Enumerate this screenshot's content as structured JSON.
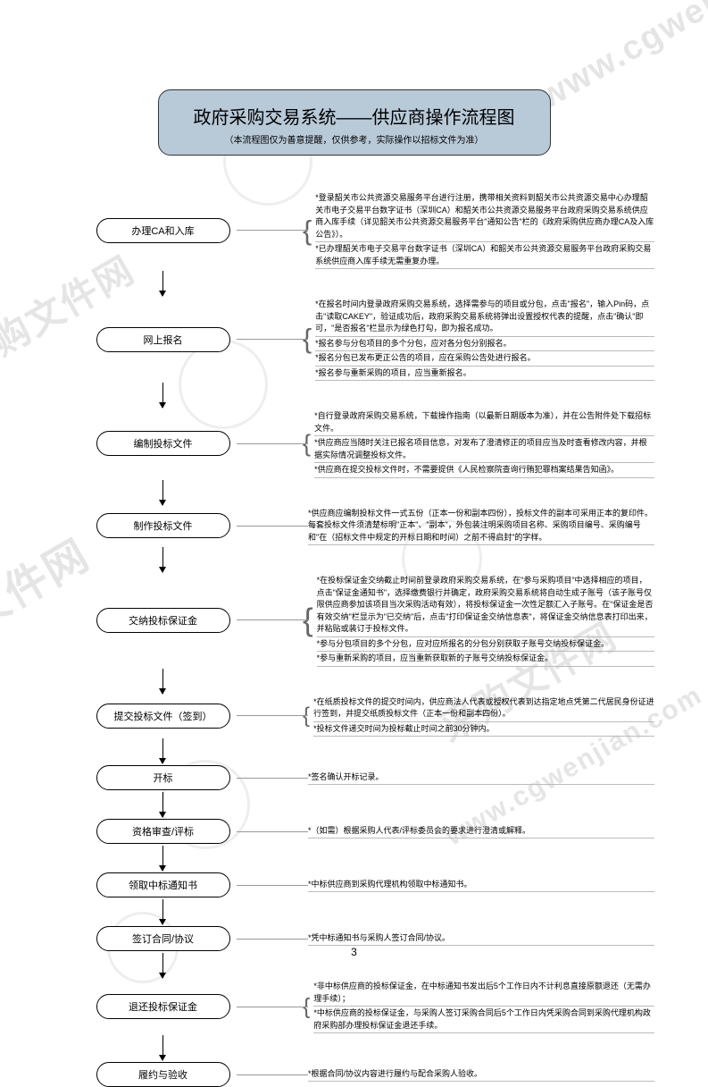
{
  "title": {
    "main": "政府采购交易系统——供应商操作流程图",
    "sub": "（本流程图仅为善意提醒，仅供参考，实际操作以招标文件为准）"
  },
  "watermark_text": "采购文件网",
  "watermark_url": "www.cgwenjian.com",
  "page_number": "3",
  "colors": {
    "title_bg": "#b8c9d8",
    "border": "#000000",
    "watermark": "#e5e5e5",
    "line": "#bbbbbb"
  },
  "steps": [
    {
      "label": "办理CA和入库",
      "desc": [
        "*登录韶关市公共资源交易服务平台进行注册，携带相关资料到韶关市公共资源交易中心办理韶关市电子交易平台数字证书（深圳CA）和韶关市公共资源交易服务平台政府采购交易系统供应商入库手续（详见韶关市公共资源交易服务平台\"通知公告\"栏的《政府采购供应商办理CA及入库公告》）。",
        "*已办理韶关市电子交易平台数字证书（深圳CA）和韶关市公共资源交易服务平台政府采购交易系统供应商入库手续无需重复办理。"
      ]
    },
    {
      "label": "网上报名",
      "desc": [
        "*在报名时间内登录政府采购交易系统，选择需参与的项目或分包，点击\"报名\"，输入Pin码，点击\"读取CAKEY\"，验证成功后，政府采购交易系统将弹出设置授权代表的提醒，点击\"确认\"即可，\"是否报名\"栏显示为绿色打勾，即为报名成功。",
        "*报名参与分包项目的多个分包，应对各分包分别报名。",
        "*报名分包已发布更正公告的项目，应在采购公告处进行报名。",
        "*报名参与重新采购的项目，应当重新报名。"
      ]
    },
    {
      "label": "编制投标文件",
      "desc": [
        "*自行登录政府采购交易系统，下载操作指南（以最新日期版本为准），并在公告附件处下载招标文件。",
        "*供应商应当随时关注已报名项目信息，对发布了澄清修正的项目应当及时查看修改内容，并根据实际情况调整投标文件。",
        "*供应商在提交投标文件时，不需要提供《人民检察院查询行贿犯罪档案结果告知函》。"
      ]
    },
    {
      "label": "制作投标文件",
      "desc": [
        "*供应商应编制投标文件一式五份（正本一份和副本四份），投标文件的副本可采用正本的复印件。每套投标文件须清楚标明\"正本\"、\"副本\"，外包装注明采购项目名称、采购项目编号、采购编号和\"在（招标文件中规定的开标日期和时间）之前不得启封\"的字样。"
      ]
    },
    {
      "label": "交纳投标保证金",
      "desc": [
        "*在投标保证金交纳截止时间前登录政府采购交易系统，在\"参与采购项目\"中选择相应的项目，点击\"保证金通知书\"，选择缴费银行并确定，政府采购交易系统将自动生成子账号（该子账号仅限供应商参加该项目当次采购活动有效），将投标保证金一次性足额汇入子账号。在\"保证金是否有效交纳\"栏显示为\"已交纳\"后，点击\"打印保证金交纳信息表\"，将保证金交纳信息表打印出来，并粘贴或装订于投标文件。",
        "*参与分包项目的多个分包，应对应所报名的分包分别获取子账号交纳投标保证金。",
        "*参与重新采购的项目，应当重新获取新的子账号交纳投标保证金。"
      ]
    },
    {
      "label": "提交投标文件（签到）",
      "desc": [
        "*在纸质投标文件的提交时间内，供应商法人代表或授权代表到达指定地点凭第二代居民身份证进行签到，并提交纸质投标文件（正本一份和副本四份）。",
        "*投标文件递交时间为投标截止时间之前30分钟内。"
      ]
    },
    {
      "label": "开标",
      "desc": [
        "*签名确认开标记录。"
      ]
    },
    {
      "label": "资格审查/评标",
      "desc": [
        "*（如需）根据采购人代表/评标委员会的要求进行澄清或解释。"
      ]
    },
    {
      "label": "领取中标通知书",
      "desc": [
        "*中标供应商到采购代理机构领取中标通知书。"
      ]
    },
    {
      "label": "签订合同/协议",
      "desc": [
        "*凭中标通知书与采购人签订合同/协议。"
      ]
    },
    {
      "label": "退还投标保证金",
      "desc": [
        "*非中标供应商的投标保证金，在中标通知书发出后5个工作日内不计利息直接原额退还（无需办理手续）；",
        "*中标供应商的投标保证金，与采购人签订采购合同后5个工作日内凭采购合同到采购代理机构政府采购部办理投标保证金退还手续。"
      ]
    },
    {
      "label": "履约与验收",
      "desc": [
        "*根据合同/协议内容进行履约与配合采购人验收。"
      ]
    }
  ]
}
